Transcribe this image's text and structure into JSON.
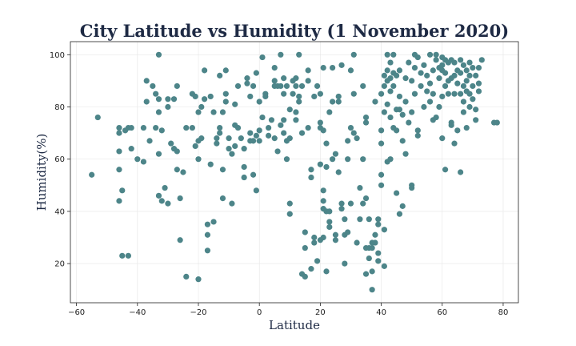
{
  "chart_data": {
    "type": "scatter",
    "title": "City Latitude vs Humidity (1 November 2020)",
    "xlabel": "Latitude",
    "ylabel": "Humidity(%)",
    "xlim": [
      -62,
      85
    ],
    "ylim": [
      5,
      105
    ],
    "xticks": [
      -60,
      -40,
      -20,
      0,
      20,
      40,
      60,
      80
    ],
    "yticks": [
      20,
      40,
      60,
      80,
      100
    ],
    "grid": true,
    "marker_color": "#4d8589",
    "points": [
      [
        -55,
        54
      ],
      [
        -53,
        76
      ],
      [
        -46,
        72
      ],
      [
        -46,
        70
      ],
      [
        -46,
        63
      ],
      [
        -46,
        56
      ],
      [
        -45,
        48
      ],
      [
        -46,
        44
      ],
      [
        -45,
        23
      ],
      [
        -43,
        23
      ],
      [
        -44,
        71
      ],
      [
        -43,
        72
      ],
      [
        -42,
        64
      ],
      [
        -42,
        72
      ],
      [
        -40,
        60
      ],
      [
        -38,
        59
      ],
      [
        -38,
        72
      ],
      [
        -37,
        90
      ],
      [
        -37,
        82
      ],
      [
        -36,
        67
      ],
      [
        -35,
        88
      ],
      [
        -34,
        85
      ],
      [
        -34,
        72
      ],
      [
        -33,
        100
      ],
      [
        -33,
        83
      ],
      [
        -33,
        78
      ],
      [
        -33,
        62
      ],
      [
        -33,
        46
      ],
      [
        -32,
        71
      ],
      [
        -32,
        44
      ],
      [
        -31,
        49
      ],
      [
        -30,
        43
      ],
      [
        -30,
        83
      ],
      [
        -30,
        80
      ],
      [
        -29,
        66
      ],
      [
        -28,
        64
      ],
      [
        -28,
        83
      ],
      [
        -27,
        88
      ],
      [
        -27,
        63
      ],
      [
        -27,
        56
      ],
      [
        -26,
        45
      ],
      [
        -25,
        55
      ],
      [
        -26,
        29
      ],
      [
        -24,
        15
      ],
      [
        -24,
        72
      ],
      [
        -22,
        85
      ],
      [
        -22,
        72
      ],
      [
        -21,
        84
      ],
      [
        -21,
        65
      ],
      [
        -20,
        60
      ],
      [
        -20,
        78
      ],
      [
        -19,
        80
      ],
      [
        -20,
        67
      ],
      [
        -19,
        68
      ],
      [
        -20,
        14
      ],
      [
        -18,
        83
      ],
      [
        -18,
        94
      ],
      [
        -17,
        31
      ],
      [
        -17,
        35
      ],
      [
        -17,
        25
      ],
      [
        -16,
        84
      ],
      [
        -16,
        58
      ],
      [
        -15,
        78
      ],
      [
        -15,
        36
      ],
      [
        -14,
        68
      ],
      [
        -14,
        66
      ],
      [
        -13,
        70
      ],
      [
        -13,
        72
      ],
      [
        -13,
        92
      ],
      [
        -12,
        78
      ],
      [
        -12,
        56
      ],
      [
        -12,
        45
      ],
      [
        -11,
        94
      ],
      [
        -11,
        85
      ],
      [
        -11,
        82
      ],
      [
        -10,
        64
      ],
      [
        -10,
        68
      ],
      [
        -9,
        62
      ],
      [
        -9,
        43
      ],
      [
        -8,
        73
      ],
      [
        -8,
        65
      ],
      [
        -8,
        81
      ],
      [
        -7,
        72
      ],
      [
        -7,
        88
      ],
      [
        -6,
        68
      ],
      [
        -5,
        64
      ],
      [
        -5,
        57
      ],
      [
        -5,
        53
      ],
      [
        -4,
        91
      ],
      [
        -4,
        89
      ],
      [
        -3,
        84
      ],
      [
        -3,
        67
      ],
      [
        -3,
        70
      ],
      [
        -2,
        67
      ],
      [
        -2,
        88
      ],
      [
        -2,
        54
      ],
      [
        -1,
        48
      ],
      [
        -1,
        69
      ],
      [
        -1,
        93
      ],
      [
        0,
        82
      ],
      [
        0,
        71
      ],
      [
        0,
        67
      ],
      [
        1,
        99
      ],
      [
        1,
        76
      ],
      [
        2,
        84
      ],
      [
        2,
        85
      ],
      [
        3,
        72
      ],
      [
        3,
        69
      ],
      [
        4,
        75
      ],
      [
        5,
        95
      ],
      [
        5,
        88
      ],
      [
        5,
        90
      ],
      [
        5,
        68
      ],
      [
        6,
        63
      ],
      [
        6,
        88
      ],
      [
        7,
        88
      ],
      [
        7,
        73
      ],
      [
        7,
        100
      ],
      [
        8,
        91
      ],
      [
        8,
        85
      ],
      [
        8,
        75
      ],
      [
        8,
        70
      ],
      [
        9,
        67
      ],
      [
        9,
        88
      ],
      [
        9,
        60
      ],
      [
        10,
        79
      ],
      [
        10,
        68
      ],
      [
        10,
        43
      ],
      [
        10,
        39
      ],
      [
        11,
        90
      ],
      [
        11,
        85
      ],
      [
        12,
        88
      ],
      [
        12,
        91
      ],
      [
        12,
        78
      ],
      [
        12,
        75
      ],
      [
        13,
        100
      ],
      [
        13,
        84
      ],
      [
        13,
        82
      ],
      [
        14,
        70
      ],
      [
        14,
        88
      ],
      [
        14,
        16
      ],
      [
        15,
        15
      ],
      [
        15,
        32
      ],
      [
        15,
        26
      ],
      [
        16,
        94
      ],
      [
        16,
        90
      ],
      [
        16,
        72
      ],
      [
        17,
        56
      ],
      [
        17,
        53
      ],
      [
        17,
        18
      ],
      [
        18,
        30
      ],
      [
        18,
        28
      ],
      [
        18,
        84
      ],
      [
        19,
        88
      ],
      [
        19,
        21
      ],
      [
        20,
        72
      ],
      [
        20,
        85
      ],
      [
        20,
        74
      ],
      [
        20,
        58
      ],
      [
        20,
        29
      ],
      [
        21,
        95
      ],
      [
        21,
        71
      ],
      [
        21,
        48
      ],
      [
        21,
        41
      ],
      [
        21,
        44
      ],
      [
        21,
        30
      ],
      [
        22,
        40
      ],
      [
        22,
        17
      ],
      [
        22,
        57
      ],
      [
        22,
        66
      ],
      [
        23,
        78
      ],
      [
        23,
        40
      ],
      [
        23,
        36
      ],
      [
        23,
        34
      ],
      [
        24,
        60
      ],
      [
        24,
        82
      ],
      [
        24,
        95
      ],
      [
        25,
        29
      ],
      [
        25,
        31
      ],
      [
        25,
        62
      ],
      [
        26,
        84
      ],
      [
        26,
        82
      ],
      [
        26,
        55
      ],
      [
        27,
        96
      ],
      [
        27,
        43
      ],
      [
        27,
        41
      ],
      [
        28,
        37
      ],
      [
        28,
        20
      ],
      [
        28,
        31
      ],
      [
        29,
        67
      ],
      [
        29,
        60
      ],
      [
        29,
        32
      ],
      [
        30,
        72
      ],
      [
        30,
        43
      ],
      [
        30,
        94
      ],
      [
        31,
        100
      ],
      [
        31,
        85
      ],
      [
        31,
        70
      ],
      [
        32,
        68
      ],
      [
        32,
        28
      ],
      [
        33,
        49
      ],
      [
        33,
        37
      ],
      [
        34,
        60
      ],
      [
        34,
        88
      ],
      [
        34,
        43
      ],
      [
        35,
        76
      ],
      [
        35,
        74
      ],
      [
        35,
        45
      ],
      [
        35,
        16
      ],
      [
        35,
        26
      ],
      [
        36,
        26
      ],
      [
        36,
        22
      ],
      [
        36,
        37
      ],
      [
        37,
        17
      ],
      [
        37,
        28
      ],
      [
        37,
        10
      ],
      [
        37,
        26
      ],
      [
        38,
        82
      ],
      [
        38,
        31
      ],
      [
        38,
        28
      ],
      [
        39,
        37
      ],
      [
        39,
        24
      ],
      [
        39,
        35
      ],
      [
        39,
        21
      ],
      [
        40,
        50
      ],
      [
        40,
        71
      ],
      [
        40,
        66
      ],
      [
        40,
        54
      ],
      [
        40,
        85
      ],
      [
        41,
        92
      ],
      [
        41,
        88
      ],
      [
        41,
        78
      ],
      [
        41,
        33
      ],
      [
        41,
        19
      ],
      [
        42,
        100
      ],
      [
        42,
        94
      ],
      [
        42,
        90
      ],
      [
        42,
        81
      ],
      [
        42,
        59
      ],
      [
        43,
        97
      ],
      [
        43,
        91
      ],
      [
        43,
        86
      ],
      [
        43,
        76
      ],
      [
        43,
        60
      ],
      [
        44,
        100
      ],
      [
        44,
        93
      ],
      [
        44,
        88
      ],
      [
        44,
        72
      ],
      [
        45,
        92
      ],
      [
        45,
        79
      ],
      [
        45,
        71
      ],
      [
        45,
        47
      ],
      [
        46,
        84
      ],
      [
        46,
        94
      ],
      [
        46,
        79
      ],
      [
        46,
        39
      ],
      [
        47,
        42
      ],
      [
        47,
        67
      ],
      [
        47,
        77
      ],
      [
        48,
        62
      ],
      [
        48,
        91
      ],
      [
        48,
        82
      ],
      [
        49,
        74
      ],
      [
        49,
        97
      ],
      [
        50,
        90
      ],
      [
        50,
        78
      ],
      [
        50,
        50
      ],
      [
        50,
        49
      ],
      [
        51,
        100
      ],
      [
        51,
        95
      ],
      [
        51,
        85
      ],
      [
        52,
        71
      ],
      [
        52,
        69
      ],
      [
        52,
        99
      ],
      [
        53,
        93
      ],
      [
        53,
        88
      ],
      [
        54,
        96
      ],
      [
        54,
        80
      ],
      [
        55,
        92
      ],
      [
        55,
        86
      ],
      [
        56,
        100
      ],
      [
        56,
        89
      ],
      [
        56,
        82
      ],
      [
        57,
        94
      ],
      [
        57,
        85
      ],
      [
        57,
        75
      ],
      [
        58,
        100
      ],
      [
        58,
        98
      ],
      [
        58,
        76
      ],
      [
        59,
        95
      ],
      [
        59,
        91
      ],
      [
        59,
        80
      ],
      [
        60,
        99
      ],
      [
        60,
        96
      ],
      [
        60,
        94
      ],
      [
        60,
        84
      ],
      [
        60,
        68
      ],
      [
        61,
        56
      ],
      [
        61,
        98
      ],
      [
        61,
        93
      ],
      [
        61,
        88
      ],
      [
        62,
        97
      ],
      [
        62,
        90
      ],
      [
        62,
        85
      ],
      [
        63,
        98
      ],
      [
        63,
        91
      ],
      [
        63,
        74
      ],
      [
        63,
        73
      ],
      [
        64,
        97
      ],
      [
        64,
        92
      ],
      [
        64,
        85
      ],
      [
        64,
        66
      ],
      [
        65,
        94
      ],
      [
        65,
        89
      ],
      [
        65,
        71
      ],
      [
        66,
        98
      ],
      [
        66,
        93
      ],
      [
        66,
        85
      ],
      [
        66,
        55
      ],
      [
        67,
        96
      ],
      [
        67,
        88
      ],
      [
        67,
        82
      ],
      [
        67,
        78
      ],
      [
        68,
        94
      ],
      [
        68,
        90
      ],
      [
        68,
        86
      ],
      [
        68,
        72
      ],
      [
        69,
        97
      ],
      [
        69,
        92
      ],
      [
        69,
        85
      ],
      [
        69,
        80
      ],
      [
        70,
        95
      ],
      [
        70,
        88
      ],
      [
        70,
        83
      ],
      [
        71,
        92
      ],
      [
        71,
        79
      ],
      [
        71,
        75
      ],
      [
        72,
        89
      ],
      [
        72,
        95
      ],
      [
        72,
        86
      ],
      [
        73,
        98
      ],
      [
        77,
        74
      ],
      [
        78,
        74
      ]
    ]
  }
}
